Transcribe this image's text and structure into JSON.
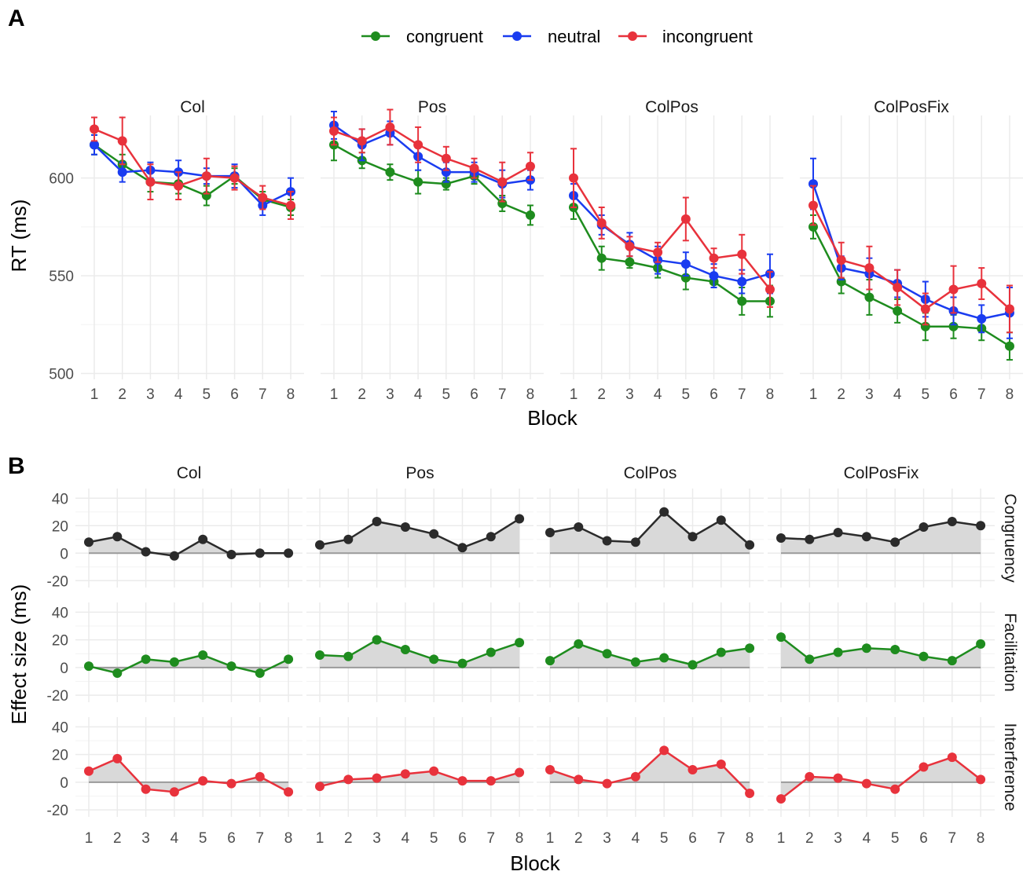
{
  "figure": {
    "panel_a_label": "A",
    "panel_b_label": "B"
  },
  "colors": {
    "congruent": "#1e8c1e",
    "neutral": "#1a3cf0",
    "incongruent": "#e8323c",
    "congruency_effect": "#2b2b2b",
    "effect_fill": "#d9d9d9",
    "grid": "#ebebeb"
  },
  "chart_data": [
    {
      "id": "panel-a",
      "type": "line",
      "xlabel": "Block",
      "ylabel": "RT (ms)",
      "ylim": [
        497,
        632
      ],
      "yticks": [
        500,
        550,
        600
      ],
      "x": [
        1,
        2,
        3,
        4,
        5,
        6,
        7,
        8
      ],
      "error_bars": true,
      "grid": true,
      "legend_position": "top",
      "legend": [
        "congruent",
        "neutral",
        "incongruent"
      ],
      "facets": [
        {
          "name": "Col",
          "series": [
            {
              "name": "congruent",
              "values": [
                617,
                607,
                598,
                597,
                591,
                601,
                589,
                585
              ],
              "err": [
                5,
                5,
                5,
                5,
                5,
                4,
                4,
                4
              ]
            },
            {
              "name": "neutral",
              "values": [
                617,
                603,
                604,
                603,
                601,
                601,
                586,
                593
              ],
              "err": [
                5,
                5,
                4,
                6,
                4,
                6,
                5,
                7
              ]
            },
            {
              "name": "incongruent",
              "values": [
                625,
                619,
                598,
                596,
                601,
                600,
                590,
                586
              ],
              "err": [
                6,
                12,
                9,
                7,
                9,
                6,
                6,
                7
              ]
            }
          ]
        },
        {
          "name": "Pos",
          "series": [
            {
              "name": "congruent",
              "values": [
                617,
                609,
                603,
                598,
                597,
                601,
                587,
                581
              ],
              "err": [
                8,
                4,
                4,
                6,
                3,
                4,
                4,
                5
              ]
            },
            {
              "name": "neutral",
              "values": [
                627,
                617,
                623,
                611,
                603,
                603,
                597,
                599
              ],
              "err": [
                7,
                8,
                6,
                7,
                5,
                5,
                7,
                5
              ]
            },
            {
              "name": "incongruent",
              "values": [
                624,
                619,
                626,
                617,
                610,
                605,
                598,
                606
              ],
              "err": [
                7,
                6,
                9,
                9,
                6,
                5,
                10,
                7
              ]
            }
          ]
        },
        {
          "name": "ColPos",
          "series": [
            {
              "name": "congruent",
              "values": [
                585,
                559,
                557,
                554,
                549,
                547,
                537,
                537
              ],
              "err": [
                6,
                6,
                3,
                5,
                6,
                3,
                7,
                8
              ]
            },
            {
              "name": "neutral",
              "values": [
                591,
                576,
                566,
                558,
                556,
                550,
                547,
                551
              ],
              "err": [
                6,
                5,
                6,
                7,
                6,
                6,
                6,
                10
              ]
            },
            {
              "name": "incongruent",
              "values": [
                600,
                577,
                565,
                562,
                579,
                559,
                561,
                543
              ],
              "err": [
                15,
                8,
                5,
                5,
                11,
                5,
                10,
                9
              ]
            }
          ]
        },
        {
          "name": "ColPosFix",
          "series": [
            {
              "name": "congruent",
              "values": [
                575,
                547,
                539,
                532,
                524,
                524,
                523,
                514
              ],
              "err": [
                6,
                6,
                9,
                6,
                7,
                6,
                6,
                7
              ]
            },
            {
              "name": "neutral",
              "values": [
                597,
                554,
                551,
                546,
                538,
                532,
                528,
                531
              ],
              "err": [
                13,
                6,
                8,
                7,
                9,
                7,
                7,
                13
              ]
            },
            {
              "name": "incongruent",
              "values": [
                586,
                558,
                554,
                544,
                533,
                543,
                546,
                533
              ],
              "err": [
                10,
                9,
                11,
                9,
                8,
                12,
                8,
                12
              ]
            }
          ]
        }
      ]
    },
    {
      "id": "panel-b",
      "type": "area",
      "xlabel": "Block",
      "ylabel": "Effect size (ms)",
      "ylim": [
        -25,
        47
      ],
      "yticks": [
        -20,
        0,
        20,
        40
      ],
      "x": [
        1,
        2,
        3,
        4,
        5,
        6,
        7,
        8
      ],
      "grid": true,
      "columns": [
        "Col",
        "Pos",
        "ColPos",
        "ColPosFix"
      ],
      "rows": [
        "Congruency",
        "Facilitation",
        "Interference"
      ],
      "values": {
        "Congruency": {
          "Col": [
            8,
            12,
            1,
            -2,
            10,
            -1,
            0,
            0
          ],
          "Pos": [
            6,
            10,
            23,
            19,
            14,
            4,
            12,
            25
          ],
          "ColPos": [
            15,
            19,
            9,
            8,
            30,
            12,
            24,
            6
          ],
          "ColPosFix": [
            11,
            10,
            15,
            12,
            8,
            19,
            23,
            20
          ]
        },
        "Facilitation": {
          "Col": [
            1,
            -4,
            6,
            4,
            9,
            1,
            -4,
            6
          ],
          "Pos": [
            9,
            8,
            20,
            13,
            6,
            3,
            11,
            18
          ],
          "ColPos": [
            5,
            17,
            10,
            4,
            7,
            2,
            11,
            14
          ],
          "ColPosFix": [
            22,
            6,
            11,
            14,
            13,
            8,
            5,
            17
          ]
        },
        "Interference": {
          "Col": [
            8,
            17,
            -5,
            -7,
            1,
            -1,
            4,
            -7
          ],
          "Pos": [
            -3,
            2,
            3,
            6,
            8,
            1,
            1,
            7
          ],
          "ColPos": [
            9,
            2,
            -1,
            4,
            23,
            9,
            13,
            -8
          ],
          "ColPosFix": [
            -12,
            4,
            3,
            -1,
            -5,
            11,
            18,
            2
          ]
        }
      }
    }
  ]
}
